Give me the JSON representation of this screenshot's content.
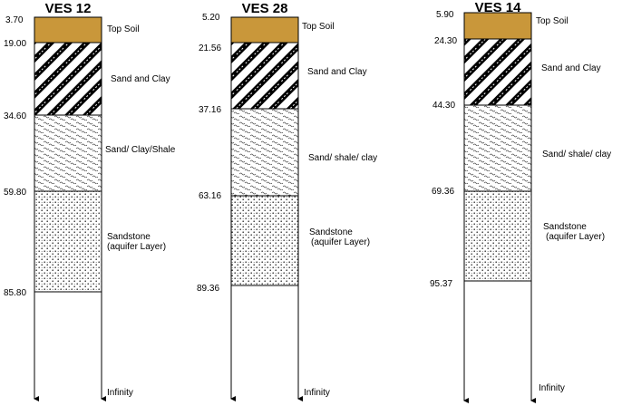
{
  "colors": {
    "topsoil": "#c9973a",
    "ink": "#000000"
  },
  "columns": [
    {
      "title": "VES 12",
      "depths": [
        "3.70",
        "19.00",
        "34.60",
        "59.80",
        "85.80"
      ],
      "layers": [
        {
          "type": "topsoil",
          "label": [
            "Top Soil"
          ]
        },
        {
          "type": "sandclay",
          "label": [
            "Sand and Clay"
          ]
        },
        {
          "type": "shale",
          "label": [
            "Sand/ Clay/Shale"
          ]
        },
        {
          "type": "sandstone",
          "label": [
            "Sandstone",
            "(aquifer Layer)"
          ]
        }
      ],
      "bottom_label": "Infinity"
    },
    {
      "title": "VES 28",
      "depths": [
        "5.20",
        "21.56",
        "37.16",
        "63.16",
        "89.36"
      ],
      "layers": [
        {
          "type": "topsoil",
          "label": [
            "Top Soil"
          ]
        },
        {
          "type": "sandclay",
          "label": [
            "Sand and Clay"
          ]
        },
        {
          "type": "shale",
          "label": [
            "Sand/ shale/ clay"
          ]
        },
        {
          "type": "sandstone",
          "label": [
            "Sandstone",
            "(aquifer Layer)"
          ]
        }
      ],
      "bottom_label": "Infinity"
    },
    {
      "title": "VES 14",
      "depths": [
        "5.90",
        "24.30",
        "44.30",
        "69.36",
        "95.37"
      ],
      "layers": [
        {
          "type": "topsoil",
          "label": [
            "Top Soil"
          ]
        },
        {
          "type": "sandclay",
          "label": [
            "Sand and Clay"
          ]
        },
        {
          "type": "shale",
          "label": [
            "Sand/ shale/ clay"
          ]
        },
        {
          "type": "sandstone",
          "label": [
            "Sandstone",
            "(aquifer Layer)"
          ]
        }
      ],
      "bottom_label": "Infinity"
    }
  ]
}
